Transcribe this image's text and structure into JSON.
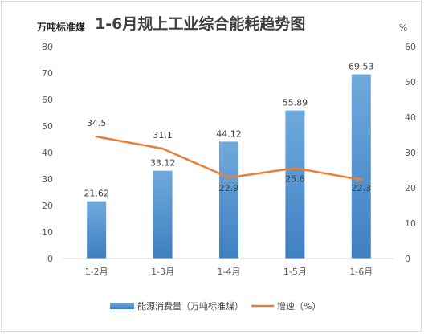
{
  "chart_data": {
    "type": "bar",
    "title": "1-6月规上工业综合能耗趋势图",
    "left_axis_unit": "万吨标准煤",
    "right_axis_unit": "%",
    "categories": [
      "1-2月",
      "1-3月",
      "1-4月",
      "1-5月",
      "1-6月"
    ],
    "series": [
      {
        "name": "能源消费量（万吨标准煤）",
        "type": "bar",
        "axis": "left",
        "values": [
          21.62,
          33.12,
          44.12,
          55.89,
          69.53
        ],
        "labels": [
          "21.62",
          "33.12",
          "44.12",
          "55.89",
          "69.53"
        ],
        "color": "#5b9bd5"
      },
      {
        "name": "增速（%）",
        "type": "line",
        "axis": "right",
        "values": [
          34.5,
          31.1,
          22.9,
          25.6,
          22.3
        ],
        "labels": [
          "34.5",
          "31.1",
          "22.9",
          "25.6",
          "22.3"
        ],
        "color": "#ed7d31"
      }
    ],
    "ylim_left": [
      0,
      80
    ],
    "ylim_right": [
      0,
      60
    ],
    "left_ticks": [
      "0",
      "10",
      "20",
      "30",
      "40",
      "50",
      "60",
      "70",
      "80"
    ],
    "right_ticks": [
      "0",
      "10",
      "20",
      "30",
      "40",
      "50",
      "60"
    ],
    "grid": false,
    "legend_position": "bottom"
  }
}
